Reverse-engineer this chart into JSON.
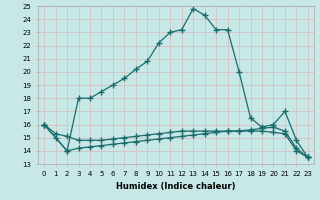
{
  "xlabel": "Humidex (Indice chaleur)",
  "bg_color": "#c8e8e8",
  "line_color": "#1a6b6b",
  "grid_color": "#b0d0d0",
  "xlim": [
    -0.5,
    23.5
  ],
  "ylim": [
    13,
    25
  ],
  "xticks": [
    0,
    1,
    2,
    3,
    4,
    5,
    6,
    7,
    8,
    9,
    10,
    11,
    12,
    13,
    14,
    15,
    16,
    17,
    18,
    19,
    20,
    21,
    22,
    23
  ],
  "yticks": [
    13,
    14,
    15,
    16,
    17,
    18,
    19,
    20,
    21,
    22,
    23,
    24,
    25
  ],
  "line1_x": [
    0,
    1,
    2,
    3,
    4,
    5,
    6,
    7,
    8,
    9,
    10,
    11,
    12,
    13,
    14,
    15,
    16,
    17,
    18,
    19,
    20,
    21,
    22,
    23
  ],
  "line1_y": [
    16.0,
    15.0,
    14.0,
    18.0,
    18.0,
    18.5,
    19.0,
    19.5,
    20.2,
    20.8,
    22.2,
    23.0,
    23.2,
    24.8,
    24.3,
    23.2,
    23.2,
    20.0,
    16.5,
    15.8,
    16.0,
    17.0,
    14.8,
    13.5
  ],
  "line2_x": [
    0,
    1,
    2,
    3,
    4,
    5,
    6,
    7,
    8,
    9,
    10,
    11,
    12,
    13,
    14,
    15,
    16,
    17,
    18,
    19,
    20,
    21,
    22,
    23
  ],
  "line2_y": [
    16.0,
    15.3,
    15.1,
    14.8,
    14.8,
    14.8,
    14.9,
    15.0,
    15.1,
    15.2,
    15.3,
    15.4,
    15.5,
    15.5,
    15.5,
    15.5,
    15.5,
    15.5,
    15.5,
    15.5,
    15.4,
    15.3,
    14.0,
    13.5
  ],
  "line3_x": [
    0,
    2,
    3,
    4,
    5,
    6,
    7,
    8,
    9,
    10,
    11,
    12,
    13,
    14,
    15,
    16,
    17,
    18,
    19,
    20,
    21,
    22,
    23
  ],
  "line3_y": [
    16.0,
    14.0,
    14.2,
    14.3,
    14.4,
    14.5,
    14.6,
    14.7,
    14.8,
    14.9,
    15.0,
    15.1,
    15.2,
    15.3,
    15.4,
    15.5,
    15.5,
    15.6,
    15.7,
    15.8,
    15.5,
    14.2,
    13.5
  ]
}
